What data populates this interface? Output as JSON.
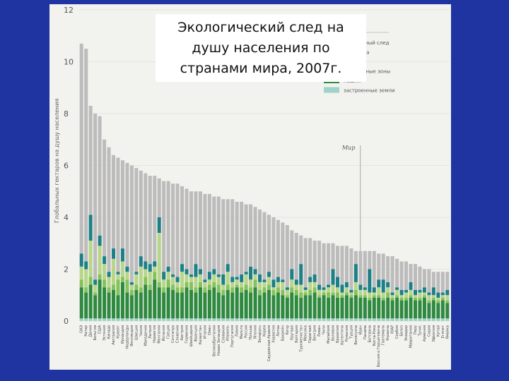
{
  "title": "Экологический след на\nдушу населения по\nстранами мира, 2007г.",
  "chart_data": {
    "type": "bar",
    "stacked": true,
    "ylabel": "Глобальных гектаров на душу населения",
    "ylim": [
      0,
      12
    ],
    "yticks": [
      0,
      2,
      4,
      6,
      8,
      10,
      12
    ],
    "grid": true,
    "legend_title": "Обозначения",
    "legend_position": "top-right",
    "reference_line": {
      "label": "Мир",
      "value": 2.7
    },
    "series": [
      {
        "name": "углеродный след",
        "color": "#bdbcbc"
      },
      {
        "name": "пастбища",
        "color": "#1d7f87"
      },
      {
        "name": "леса",
        "color": "#b7d68a"
      },
      {
        "name": "рыболовные зоны",
        "color": "#84c25a"
      },
      {
        "name": "пашня",
        "color": "#2e8a3f"
      },
      {
        "name": "застроенные земли",
        "color": "#9fd3c7"
      }
    ],
    "totals": [
      10.7,
      10.5,
      8.3,
      8.0,
      7.9,
      7.0,
      6.7,
      6.4,
      6.3,
      6.2,
      6.1,
      6.0,
      5.9,
      5.8,
      5.7,
      5.6,
      5.6,
      5.5,
      5.4,
      5.4,
      5.3,
      5.3,
      5.2,
      5.1,
      5.0,
      5.0,
      5.0,
      4.9,
      4.9,
      4.8,
      4.8,
      4.7,
      4.7,
      4.7,
      4.6,
      4.6,
      4.5,
      4.5,
      4.4,
      4.3,
      4.2,
      4.1,
      4.0,
      3.9,
      3.8,
      3.7,
      3.5,
      3.4,
      3.3,
      3.2,
      3.2,
      3.1,
      3.1,
      3.0,
      3.0,
      3.0,
      2.9,
      2.9,
      2.9,
      2.8,
      2.7,
      2.7,
      2.7,
      2.7,
      2.7,
      2.6,
      2.6,
      2.5,
      2.5,
      2.4,
      2.3,
      2.3,
      2.2,
      2.2,
      2.1,
      2.0,
      2.0,
      1.9,
      1.9,
      1.9,
      1.9
    ],
    "pasture": [
      0.5,
      0.3,
      1.0,
      0.2,
      0.4,
      0.3,
      0.2,
      0.4,
      0.1,
      0.5,
      0.2,
      0.1,
      0.1,
      0.4,
      0.3,
      0.3,
      0.2,
      0.6,
      0.3,
      0.2,
      0.1,
      0.2,
      0.3,
      0.2,
      0.1,
      0.5,
      0.2,
      0.1,
      0.3,
      0.2,
      0.1,
      0.4,
      0.3,
      0.2,
      0.1,
      0.3,
      0.1,
      0.5,
      0.2,
      0.3,
      0.1,
      0.2,
      0.3,
      0.2,
      0.1,
      0.1,
      0.4,
      0.2,
      0.8,
      0.1,
      0.2,
      0.3,
      0.2,
      0.1,
      0.1,
      0.6,
      0.4,
      0.3,
      0.2,
      0.1,
      0.7,
      0.2,
      0.1,
      0.9,
      0.2,
      0.3,
      0.5,
      0.2,
      0.1,
      0.1,
      0.2,
      0.1,
      0.3,
      0.2,
      0.1,
      0.2,
      0.1,
      0.3,
      0.2,
      0.1,
      0.2
    ],
    "forest": [
      0.5,
      0.7,
      1.4,
      0.3,
      1.1,
      0.6,
      0.4,
      1.0,
      0.2,
      0.6,
      0.3,
      0.2,
      0.4,
      0.8,
      0.3,
      0.5,
      0.2,
      1.9,
      0.3,
      0.3,
      0.3,
      0.2,
      0.6,
      0.3,
      0.2,
      0.4,
      0.3,
      0.2,
      0.2,
      0.3,
      0.3,
      0.2,
      0.5,
      0.2,
      0.2,
      0.2,
      0.4,
      0.3,
      0.2,
      0.3,
      0.2,
      0.3,
      0.1,
      0.2,
      0.3,
      0.2,
      0.3,
      0.2,
      0.3,
      0.1,
      0.3,
      0.2,
      0.2,
      0.1,
      0.2,
      0.3,
      0.2,
      0.1,
      0.2,
      0.1,
      0.3,
      0.2,
      0.2,
      0.2,
      0.1,
      0.3,
      0.2,
      0.2,
      0.1,
      0.2,
      0.1,
      0.2,
      0.2,
      0.1,
      0.2,
      0.1,
      0.2,
      0.1,
      0.1,
      0.1,
      0.2
    ],
    "fishing": [
      0.3,
      0.2,
      0.3,
      0.1,
      0.2,
      0.3,
      0.2,
      0.2,
      0.6,
      0.2,
      0.5,
      0.2,
      0.2,
      0.2,
      0.3,
      0.2,
      0.3,
      0.2,
      0.2,
      0.3,
      0.2,
      0.2,
      0.2,
      0.2,
      0.3,
      0.2,
      0.2,
      0.2,
      0.2,
      0.2,
      0.3,
      0.2,
      0.2,
      0.2,
      0.1,
      0.2,
      0.2,
      0.2,
      0.3,
      0.2,
      0.2,
      0.2,
      0.2,
      0.2,
      0.2,
      0.1,
      0.2,
      0.2,
      0.2,
      0.1,
      0.2,
      0.2,
      0.1,
      0.1,
      0.2,
      0.1,
      0.2,
      0.1,
      0.1,
      0.1,
      0.2,
      0.1,
      0.1,
      0.1,
      0.1,
      0.1,
      0.1,
      0.2,
      0.1,
      0.1,
      0.1,
      0.1,
      0.1,
      0.1,
      0.1,
      0.1,
      0.1,
      0.1,
      0.1,
      0.1,
      0.1
    ],
    "cropland": [
      1.2,
      1.0,
      1.3,
      0.9,
      1.5,
      1.2,
      1.0,
      1.1,
      0.9,
      1.4,
      1.0,
      0.9,
      1.1,
      1.0,
      1.3,
      1.1,
      1.5,
      1.2,
      1.0,
      1.2,
      1.1,
      1.0,
      1.0,
      1.2,
      1.1,
      1.0,
      1.2,
      1.0,
      1.1,
      1.2,
      1.0,
      0.9,
      1.1,
      1.0,
      1.2,
      1.0,
      1.1,
      1.0,
      1.2,
      0.9,
      1.0,
      1.1,
      0.9,
      1.0,
      0.9,
      0.8,
      1.0,
      0.9,
      0.8,
      0.9,
      0.9,
      1.0,
      0.8,
      0.9,
      0.8,
      0.9,
      0.8,
      0.8,
      0.9,
      0.8,
      0.9,
      0.8,
      0.8,
      0.7,
      0.8,
      0.8,
      0.7,
      0.8,
      0.7,
      0.8,
      0.7,
      0.7,
      0.8,
      0.7,
      0.7,
      0.8,
      0.6,
      0.7,
      0.6,
      0.7,
      0.6
    ],
    "built": [
      0.1,
      0.1,
      0.1,
      0.1,
      0.1,
      0.1,
      0.1,
      0.1,
      0.1,
      0.1,
      0.1,
      0.1,
      0.1,
      0.1,
      0.1,
      0.1,
      0.1,
      0.1,
      0.1,
      0.1,
      0.1,
      0.1,
      0.1,
      0.1,
      0.1,
      0.1,
      0.1,
      0.1,
      0.1,
      0.1,
      0.1,
      0.1,
      0.1,
      0.1,
      0.1,
      0.1,
      0.1,
      0.1,
      0.1,
      0.1,
      0.1,
      0.1,
      0.1,
      0.1,
      0.1,
      0.1,
      0.1,
      0.1,
      0.1,
      0.1,
      0.1,
      0.1,
      0.1,
      0.1,
      0.1,
      0.1,
      0.1,
      0.1,
      0.1,
      0.1,
      0.1,
      0.1,
      0.1,
      0.1,
      0.1,
      0.1,
      0.1,
      0.1,
      0.1,
      0.1,
      0.1,
      0.1,
      0.1,
      0.1,
      0.1,
      0.1,
      0.1,
      0.1,
      0.1,
      0.1,
      0.1
    ],
    "categories": [
      "ОАЭ",
      "Катар",
      "Дания",
      "Бельгия",
      "США",
      "Эстония",
      "Канада",
      "Австралия",
      "Кувейт",
      "Ирландия",
      "Нидерланды",
      "Финляндия",
      "Швеция",
      "Чехия",
      "Македония",
      "Латвия",
      "Норвегия",
      "Монголия",
      "Испания",
      "Греция",
      "Сингапур",
      "Словения",
      "Австрия",
      "Германия",
      "Швейцария",
      "Франция",
      "Казахстан",
      "Италия",
      "Оман",
      "Великобритания",
      "Новая Зеландия",
      "Словакия",
      "Израиль",
      "Португалия",
      "Ливия",
      "Мальта",
      "Россия",
      "Польша",
      "Япония",
      "Беларусь",
      "Корея",
      "Саудовская Аравия",
      "Хорватия",
      "Литва",
      "Бахрейн",
      "Кипр",
      "Уругвай",
      "Болгария",
      "Туркменистан",
      "Мексика",
      "Парагвай",
      "Венгрия",
      "Ливан",
      "Чили",
      "Малайзия",
      "Боливия",
      "Бразилия",
      "Аргентина",
      "Румыния",
      "Турция",
      "Венесуэла",
      "Иран",
      "Панама",
      "Ботсвана",
      "Коста-Рика",
      "Босния и Герцеговина",
      "Гватемала",
      "Украина",
      "ЮАР",
      "Сербия",
      "Белиз",
      "Эквадор",
      "Мавритания",
      "Перу",
      "Тунис",
      "Армения",
      "Сирия",
      "Эфиопия",
      "Китай",
      "Египет",
      "Ямайка"
    ]
  }
}
